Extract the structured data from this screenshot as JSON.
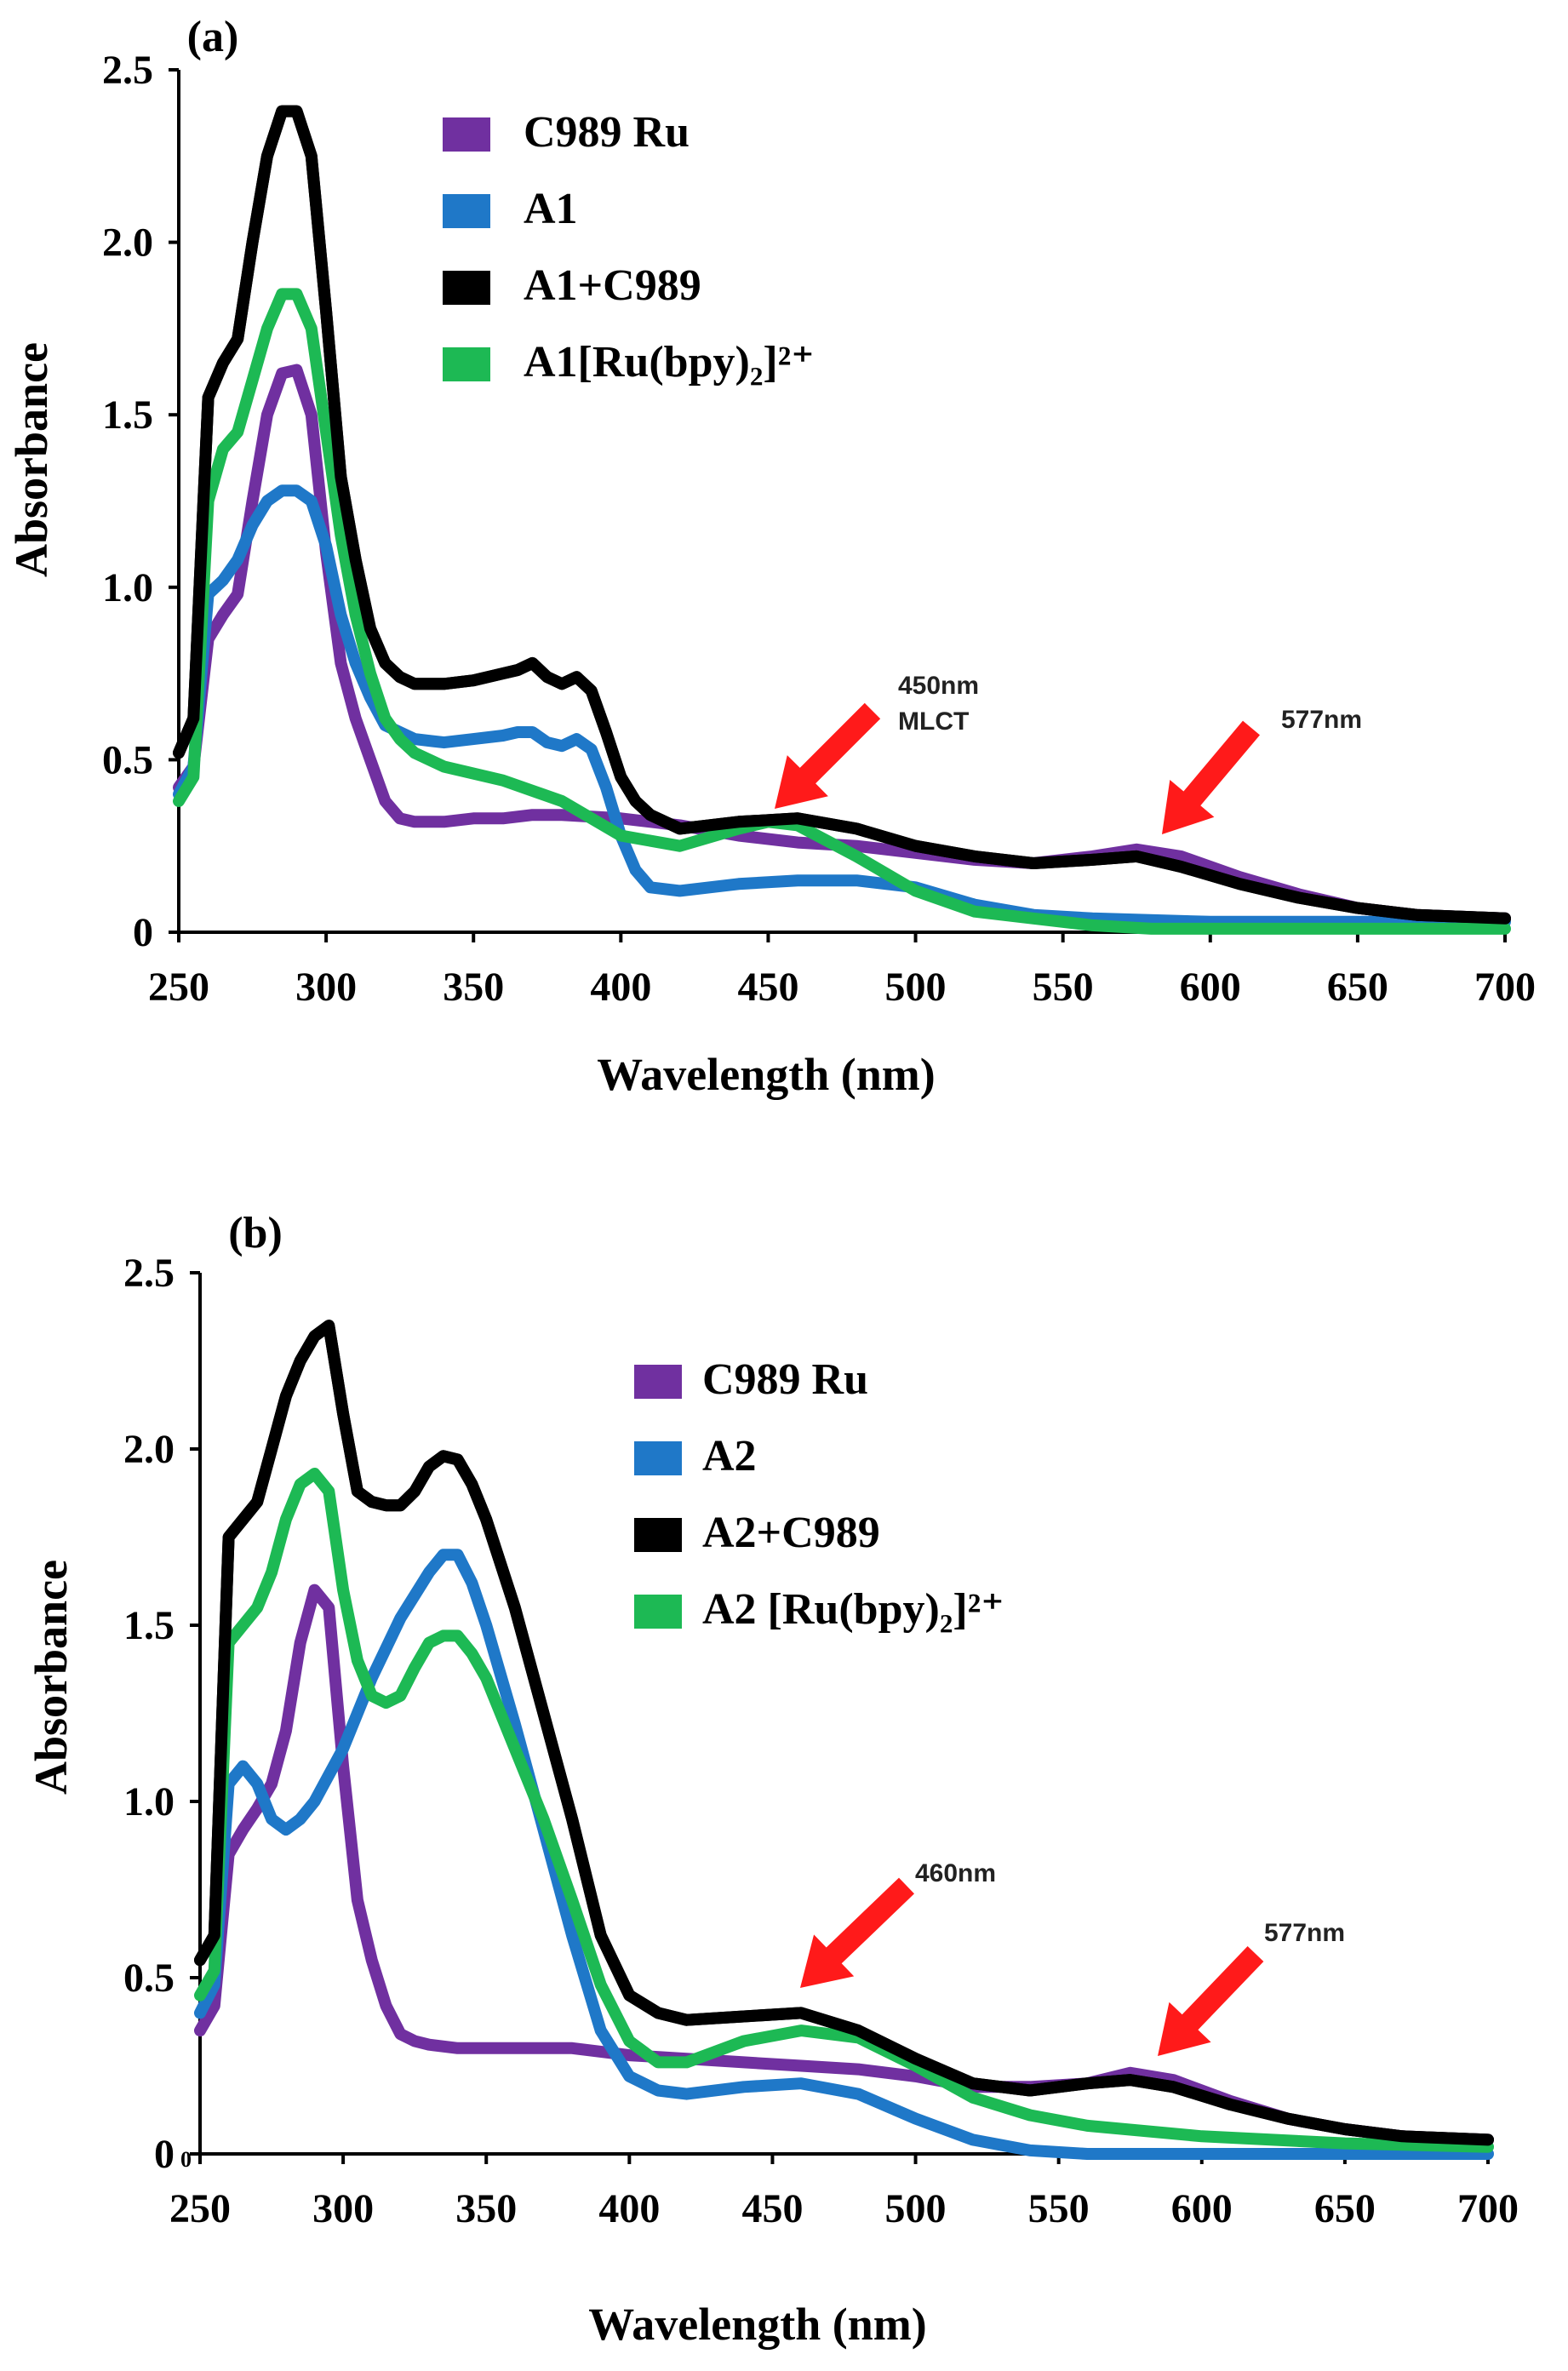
{
  "chart_data": [
    {
      "panel": "(a)",
      "type": "line",
      "xlabel": "Wavelength (nm)",
      "ylabel": "Absorbance",
      "xlim": [
        250,
        700
      ],
      "ylim": [
        0,
        2.5
      ],
      "xticks": [
        250,
        300,
        350,
        400,
        450,
        500,
        550,
        600,
        650,
        700
      ],
      "yticks": [
        0,
        0.5,
        1.0,
        1.5,
        2.0,
        2.5
      ],
      "ytick_labels": [
        "0",
        "0.5",
        "1.0",
        "1.5",
        "2.0",
        "2.5"
      ],
      "legend_position": "top-center",
      "series": [
        {
          "name": "C989 Ru",
          "color": "#7030A0",
          "x": [
            250,
            255,
            260,
            265,
            270,
            275,
            280,
            285,
            290,
            295,
            300,
            305,
            310,
            315,
            320,
            325,
            330,
            340,
            350,
            360,
            370,
            380,
            400,
            420,
            440,
            460,
            480,
            500,
            520,
            540,
            560,
            575,
            590,
            610,
            630,
            650,
            670,
            700
          ],
          "y": [
            0.42,
            0.48,
            0.85,
            0.92,
            0.98,
            1.25,
            1.5,
            1.62,
            1.63,
            1.5,
            1.1,
            0.78,
            0.62,
            0.5,
            0.38,
            0.33,
            0.32,
            0.32,
            0.33,
            0.33,
            0.34,
            0.34,
            0.33,
            0.31,
            0.28,
            0.26,
            0.25,
            0.23,
            0.21,
            0.2,
            0.22,
            0.24,
            0.22,
            0.16,
            0.11,
            0.07,
            0.05,
            0.04
          ]
        },
        {
          "name": "A1",
          "color": "#1F78C8",
          "x": [
            250,
            255,
            260,
            265,
            270,
            275,
            280,
            285,
            290,
            295,
            300,
            305,
            310,
            315,
            320,
            330,
            340,
            350,
            360,
            365,
            370,
            375,
            380,
            385,
            390,
            395,
            400,
            405,
            410,
            420,
            440,
            460,
            480,
            500,
            520,
            540,
            560,
            600,
            650,
            700
          ],
          "y": [
            0.4,
            0.48,
            0.98,
            1.02,
            1.08,
            1.18,
            1.25,
            1.28,
            1.28,
            1.25,
            1.12,
            0.92,
            0.78,
            0.68,
            0.6,
            0.56,
            0.55,
            0.56,
            0.57,
            0.58,
            0.58,
            0.55,
            0.54,
            0.56,
            0.53,
            0.42,
            0.28,
            0.18,
            0.13,
            0.12,
            0.14,
            0.15,
            0.15,
            0.13,
            0.08,
            0.05,
            0.04,
            0.03,
            0.03,
            0.03
          ]
        },
        {
          "name": "A1+C989",
          "color": "#000000",
          "x": [
            250,
            255,
            260,
            265,
            270,
            275,
            280,
            285,
            290,
            295,
            300,
            305,
            310,
            315,
            320,
            325,
            330,
            340,
            350,
            360,
            365,
            370,
            375,
            380,
            385,
            390,
            395,
            400,
            405,
            410,
            420,
            440,
            460,
            480,
            500,
            520,
            540,
            560,
            575,
            590,
            610,
            630,
            650,
            670,
            700
          ],
          "y": [
            0.52,
            0.62,
            1.55,
            1.65,
            1.72,
            2.0,
            2.25,
            2.38,
            2.38,
            2.25,
            1.8,
            1.32,
            1.08,
            0.88,
            0.78,
            0.74,
            0.72,
            0.72,
            0.73,
            0.75,
            0.76,
            0.78,
            0.74,
            0.72,
            0.74,
            0.7,
            0.58,
            0.45,
            0.38,
            0.34,
            0.3,
            0.32,
            0.33,
            0.3,
            0.25,
            0.22,
            0.2,
            0.21,
            0.22,
            0.19,
            0.14,
            0.1,
            0.07,
            0.05,
            0.04
          ]
        },
        {
          "name": "A1[Ru(bpy)₂]²⁺",
          "color": "#1DB954",
          "x": [
            250,
            255,
            260,
            265,
            270,
            275,
            280,
            285,
            290,
            295,
            300,
            305,
            310,
            315,
            320,
            325,
            330,
            340,
            360,
            380,
            400,
            420,
            440,
            450,
            460,
            480,
            500,
            520,
            540,
            560,
            580,
            600,
            650,
            700
          ],
          "y": [
            0.38,
            0.45,
            1.25,
            1.4,
            1.45,
            1.6,
            1.75,
            1.85,
            1.85,
            1.75,
            1.45,
            1.15,
            0.92,
            0.75,
            0.62,
            0.56,
            0.52,
            0.48,
            0.44,
            0.38,
            0.28,
            0.25,
            0.3,
            0.32,
            0.31,
            0.22,
            0.12,
            0.06,
            0.04,
            0.02,
            0.01,
            0.01,
            0.01,
            0.01
          ]
        }
      ],
      "annotations": [
        {
          "lines": [
            "450nm",
            "MLCT"
          ],
          "x": 450,
          "y": 0.38
        },
        {
          "lines": [
            "577nm"
          ],
          "x": 577,
          "y": 0.27
        }
      ]
    },
    {
      "panel": "(b)",
      "type": "line",
      "xlabel": "Wavelength (nm)",
      "ylabel": "Absorbance",
      "xlim": [
        250,
        700
      ],
      "ylim": [
        0,
        2.5
      ],
      "xticks": [
        250,
        300,
        350,
        400,
        450,
        500,
        550,
        600,
        650,
        700
      ],
      "yticks": [
        0,
        0.5,
        1.0,
        1.5,
        2.0,
        2.5
      ],
      "ytick_labels": [
        "0",
        "0.5",
        "1.0",
        "1.5",
        "2.0",
        "2.5"
      ],
      "extra_ytick_label": "0",
      "legend_position": "right-center",
      "series": [
        {
          "name": "C989 Ru",
          "color": "#7030A0",
          "x": [
            250,
            255,
            260,
            265,
            270,
            275,
            280,
            285,
            290,
            295,
            300,
            305,
            310,
            315,
            320,
            325,
            330,
            340,
            360,
            380,
            400,
            420,
            440,
            460,
            480,
            500,
            520,
            540,
            560,
            575,
            590,
            610,
            630,
            650,
            670,
            700
          ],
          "y": [
            0.35,
            0.42,
            0.85,
            0.92,
            0.98,
            1.05,
            1.2,
            1.45,
            1.6,
            1.55,
            1.1,
            0.72,
            0.55,
            0.42,
            0.34,
            0.32,
            0.31,
            0.3,
            0.3,
            0.3,
            0.28,
            0.27,
            0.26,
            0.25,
            0.24,
            0.22,
            0.19,
            0.19,
            0.2,
            0.23,
            0.21,
            0.15,
            0.1,
            0.07,
            0.05,
            0.04
          ]
        },
        {
          "name": "A2",
          "color": "#1F78C8",
          "x": [
            250,
            255,
            260,
            265,
            270,
            275,
            280,
            285,
            290,
            300,
            310,
            320,
            330,
            335,
            340,
            345,
            350,
            360,
            370,
            380,
            390,
            400,
            410,
            420,
            440,
            460,
            480,
            500,
            520,
            540,
            560,
            600,
            650,
            700
          ],
          "y": [
            0.4,
            0.48,
            1.05,
            1.1,
            1.05,
            0.95,
            0.92,
            0.95,
            1.0,
            1.15,
            1.35,
            1.52,
            1.65,
            1.7,
            1.7,
            1.62,
            1.5,
            1.22,
            0.92,
            0.62,
            0.35,
            0.22,
            0.18,
            0.17,
            0.19,
            0.2,
            0.17,
            0.1,
            0.04,
            0.01,
            0.0,
            0.0,
            0.0,
            0.0
          ]
        },
        {
          "name": "A2+C989",
          "color": "#000000",
          "x": [
            250,
            255,
            260,
            265,
            270,
            275,
            280,
            285,
            290,
            295,
            300,
            305,
            310,
            315,
            320,
            325,
            330,
            335,
            340,
            345,
            350,
            360,
            370,
            380,
            390,
            400,
            410,
            420,
            440,
            460,
            480,
            500,
            520,
            540,
            560,
            575,
            590,
            610,
            630,
            650,
            670,
            700
          ],
          "y": [
            0.55,
            0.62,
            1.75,
            1.8,
            1.85,
            2.0,
            2.15,
            2.25,
            2.32,
            2.35,
            2.1,
            1.88,
            1.85,
            1.84,
            1.84,
            1.88,
            1.95,
            1.98,
            1.97,
            1.9,
            1.8,
            1.55,
            1.25,
            0.95,
            0.62,
            0.45,
            0.4,
            0.38,
            0.39,
            0.4,
            0.35,
            0.27,
            0.2,
            0.18,
            0.2,
            0.21,
            0.19,
            0.14,
            0.1,
            0.07,
            0.05,
            0.04
          ]
        },
        {
          "name": "A2 [Ru(bpy)₂]²⁺",
          "color": "#1DB954",
          "x": [
            250,
            255,
            260,
            265,
            270,
            275,
            280,
            285,
            290,
            295,
            300,
            305,
            310,
            315,
            320,
            325,
            330,
            335,
            340,
            345,
            350,
            360,
            370,
            380,
            390,
            400,
            410,
            420,
            440,
            460,
            480,
            500,
            520,
            540,
            560,
            600,
            650,
            700
          ],
          "y": [
            0.45,
            0.52,
            1.45,
            1.5,
            1.55,
            1.65,
            1.8,
            1.9,
            1.93,
            1.88,
            1.6,
            1.4,
            1.3,
            1.28,
            1.3,
            1.38,
            1.45,
            1.47,
            1.47,
            1.42,
            1.35,
            1.15,
            0.95,
            0.72,
            0.48,
            0.32,
            0.26,
            0.26,
            0.32,
            0.35,
            0.33,
            0.25,
            0.16,
            0.11,
            0.08,
            0.05,
            0.03,
            0.02
          ]
        }
      ],
      "annotations": [
        {
          "lines": [
            "460nm"
          ],
          "x": 460,
          "y": 0.38
        },
        {
          "lines": [
            "577nm"
          ],
          "x": 577,
          "y": 0.27
        }
      ]
    }
  ],
  "colors": {
    "arrow": "#FF1A1A",
    "axis": "#000000"
  }
}
